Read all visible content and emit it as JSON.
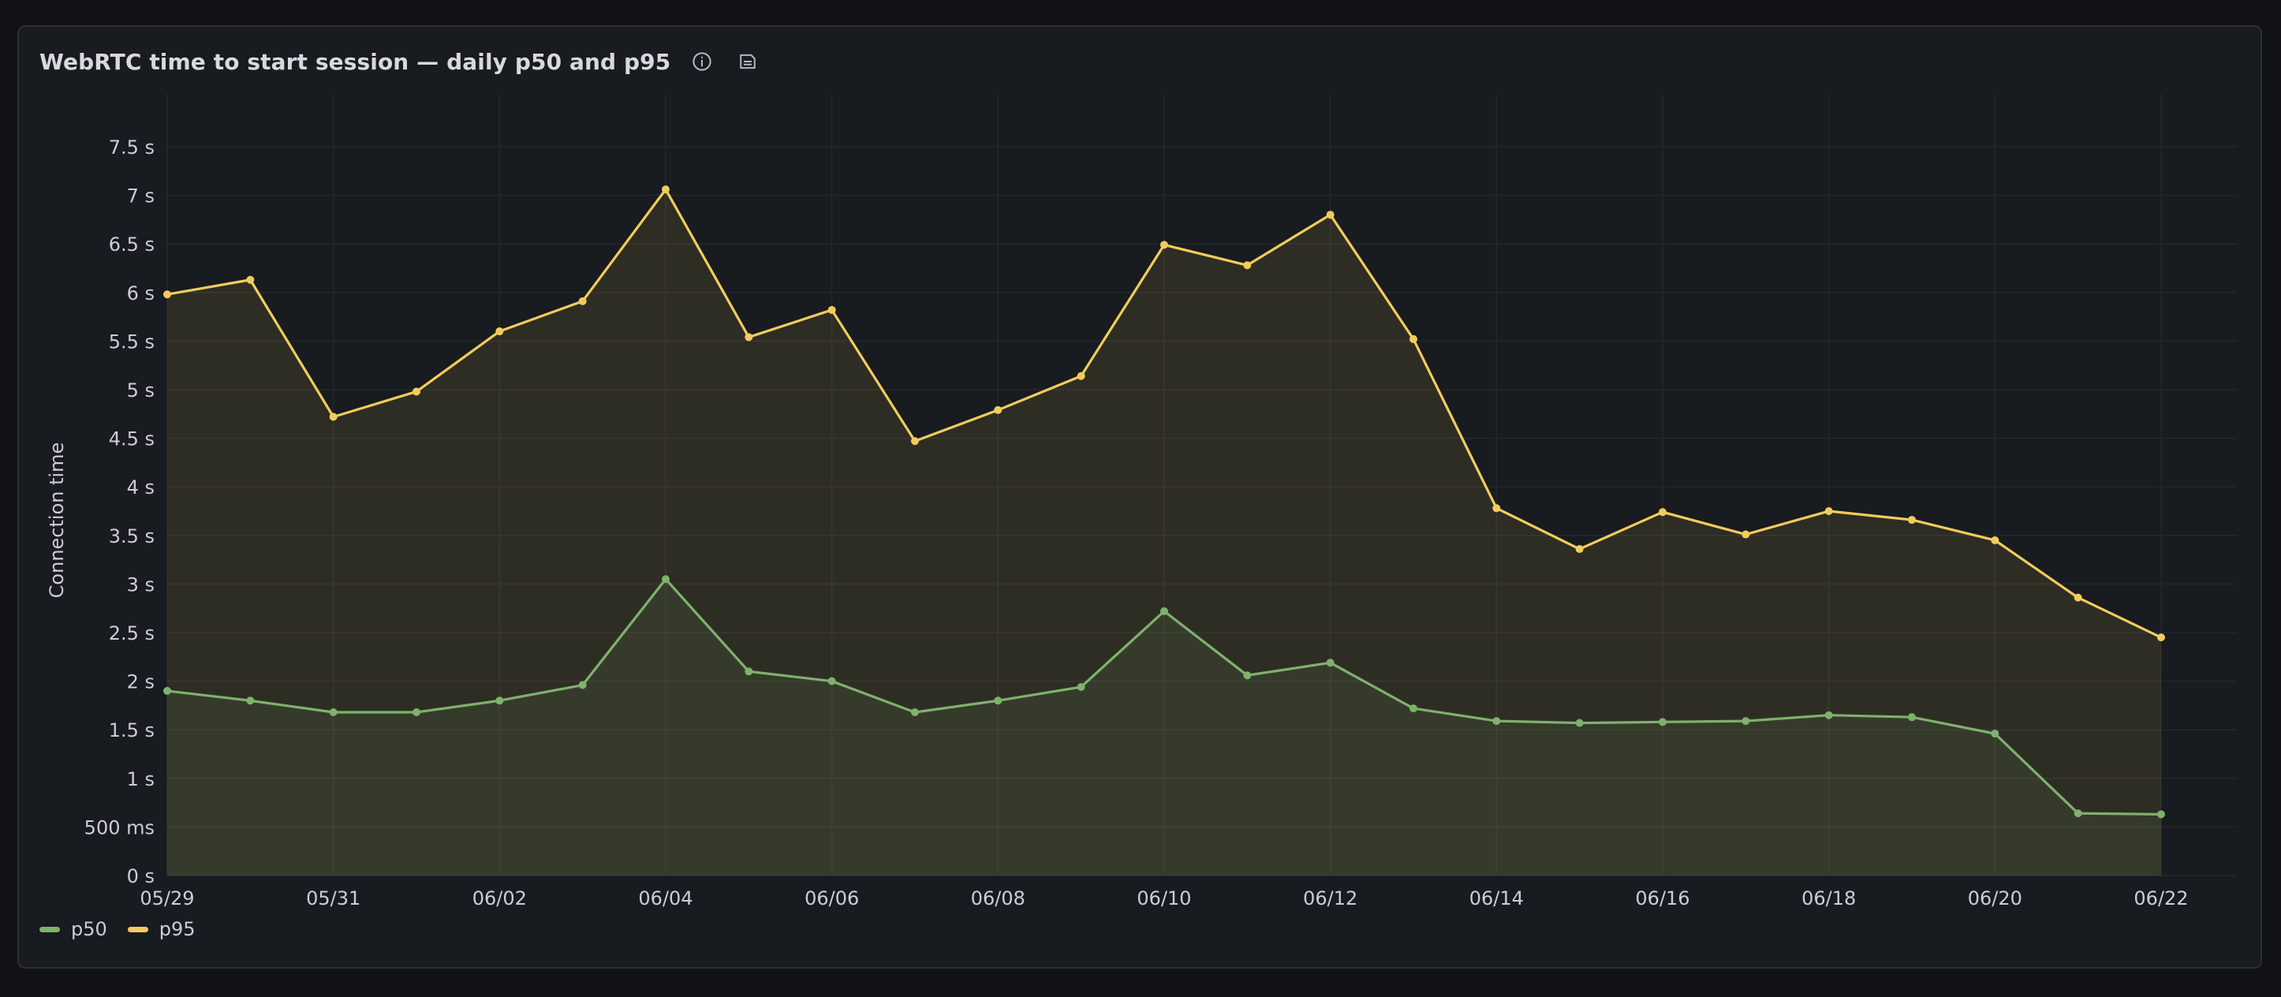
{
  "panel": {
    "title": "WebRTC time to start session — daily p50 and p95"
  },
  "header_icons": [
    "info-icon",
    "panel-description-icon"
  ],
  "colors": {
    "p50": "#7eb26d",
    "p95": "#f2cc5b",
    "grid": "#24272c",
    "panel_bg": "#181b1f"
  },
  "chart_data": {
    "type": "line",
    "title": "WebRTC time to start session — daily p50 and p95",
    "xlabel": "",
    "ylabel": "Connection time",
    "x": [
      "05/29",
      "05/30",
      "05/31",
      "06/01",
      "06/02",
      "06/03",
      "06/04",
      "06/05",
      "06/06",
      "06/07",
      "06/08",
      "06/09",
      "06/10",
      "06/11",
      "06/12",
      "06/13",
      "06/14",
      "06/15",
      "06/16",
      "06/17",
      "06/18",
      "06/19",
      "06/20",
      "06/21",
      "06/22"
    ],
    "x_tick_labels": [
      "05/29",
      "05/31",
      "06/02",
      "06/04",
      "06/06",
      "06/08",
      "06/10",
      "06/12",
      "06/14",
      "06/16",
      "06/18",
      "06/20",
      "06/22"
    ],
    "ylim": [
      0,
      7.8
    ],
    "y_tick_values": [
      0,
      0.5,
      1,
      1.5,
      2,
      2.5,
      3,
      3.5,
      4,
      4.5,
      5,
      5.5,
      6,
      6.5,
      7,
      7.5
    ],
    "y_tick_labels": [
      "0 s",
      "500 ms",
      "1 s",
      "1.5 s",
      "2 s",
      "2.5 s",
      "3 s",
      "3.5 s",
      "4 s",
      "4.5 s",
      "5 s",
      "5.5 s",
      "6 s",
      "6.5 s",
      "7 s",
      "7.5 s"
    ],
    "series": [
      {
        "name": "p50",
        "color": "#7eb26d",
        "values": [
          1.9,
          1.8,
          1.68,
          1.68,
          1.8,
          1.96,
          3.05,
          2.1,
          2.0,
          1.68,
          1.8,
          1.94,
          2.72,
          2.06,
          2.19,
          1.72,
          1.59,
          1.57,
          1.58,
          1.59,
          1.65,
          1.63,
          1.46,
          0.64,
          0.63
        ]
      },
      {
        "name": "p95",
        "color": "#f2cc5b",
        "values": [
          5.98,
          6.13,
          4.72,
          4.98,
          5.6,
          5.91,
          7.06,
          5.54,
          5.82,
          4.47,
          4.79,
          5.14,
          6.49,
          6.28,
          6.8,
          5.52,
          3.78,
          3.36,
          3.74,
          3.51,
          3.75,
          3.66,
          3.45,
          2.86,
          2.45
        ]
      }
    ],
    "grid": true,
    "legend_position": "bottom-left"
  },
  "legend": [
    {
      "label": "p50",
      "color": "#7eb26d"
    },
    {
      "label": "p95",
      "color": "#f2cc5b"
    }
  ]
}
